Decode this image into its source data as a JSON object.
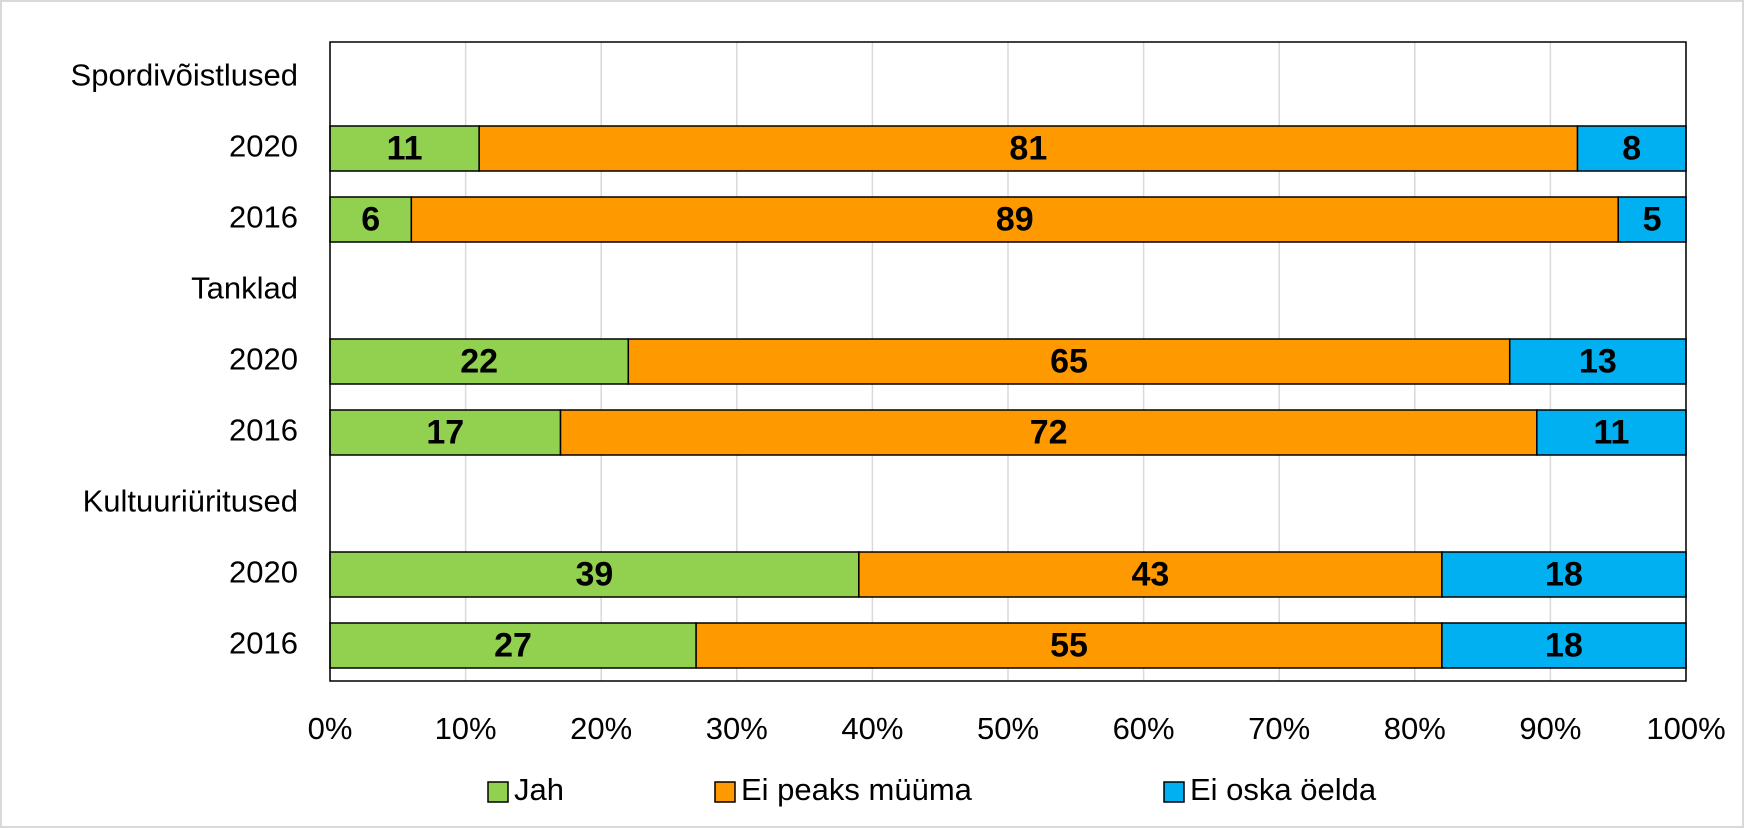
{
  "chart_data": {
    "type": "stacked_bar_horizontal",
    "categories": [
      "Spordivõistlused",
      "2020",
      "2016",
      "Tanklad",
      "2020",
      "2016",
      "Kultuuriüritused",
      "2020",
      "2016"
    ],
    "series": [
      {
        "name": "Jah",
        "color": "#92d050",
        "values": [
          null,
          11,
          6,
          null,
          22,
          17,
          null,
          39,
          27
        ]
      },
      {
        "name": "Ei peaks müüma",
        "color": "#ff9900",
        "values": [
          null,
          81,
          89,
          null,
          65,
          72,
          null,
          43,
          55
        ]
      },
      {
        "name": "Ei oska öelda",
        "color": "#00b0f0",
        "values": [
          null,
          8,
          5,
          null,
          13,
          11,
          null,
          18,
          18
        ]
      }
    ],
    "xlim": [
      0,
      100
    ],
    "xticks": [
      {
        "value": 0,
        "label": "0%"
      },
      {
        "value": 10,
        "label": "10%"
      },
      {
        "value": 20,
        "label": "20%"
      },
      {
        "value": 30,
        "label": "30%"
      },
      {
        "value": 40,
        "label": "40%"
      },
      {
        "value": 50,
        "label": "50%"
      },
      {
        "value": 60,
        "label": "60%"
      },
      {
        "value": 70,
        "label": "70%"
      },
      {
        "value": 80,
        "label": "80%"
      },
      {
        "value": 90,
        "label": "90%"
      },
      {
        "value": 100,
        "label": "100%"
      }
    ],
    "grid": true,
    "legend": "bottom"
  }
}
